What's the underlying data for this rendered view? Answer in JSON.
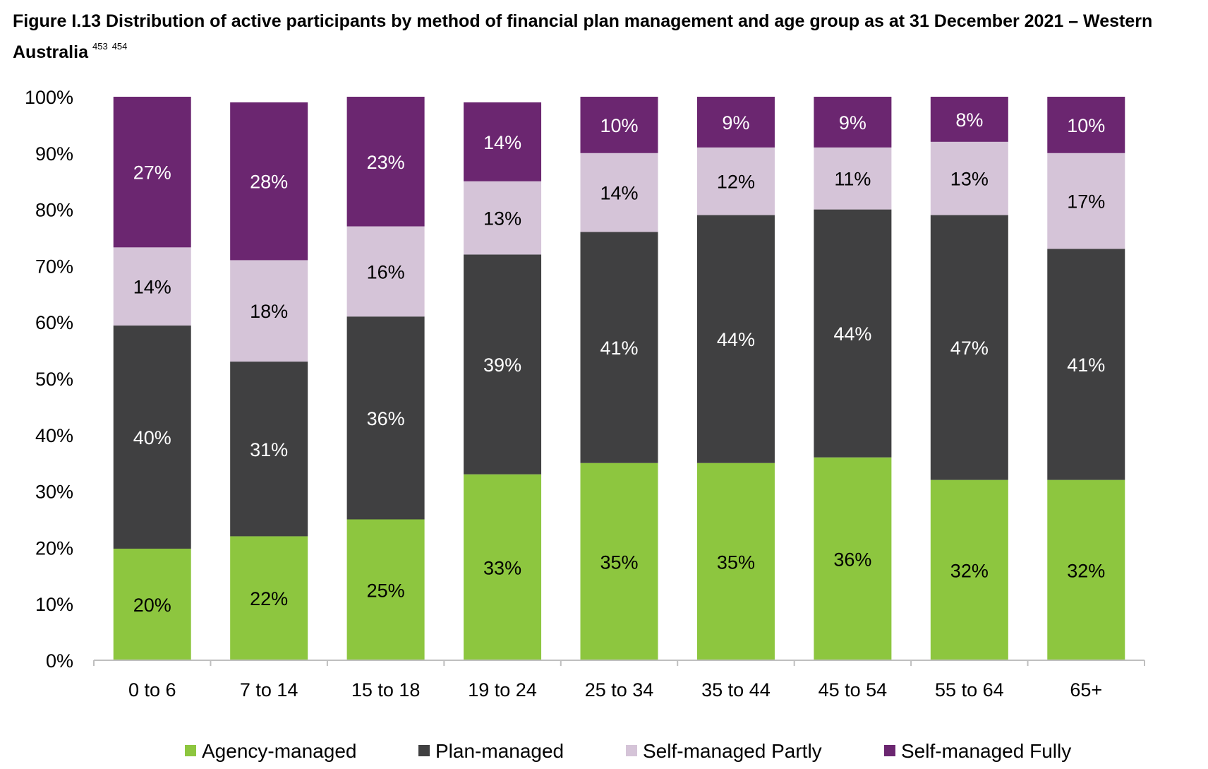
{
  "title": {
    "text": "Figure I.13 Distribution of active participants by method of financial plan management and age group as at 31 December 2021 – Western Australia",
    "footnotes": [
      "453",
      "454"
    ]
  },
  "colors": {
    "agency": "#8DC63F",
    "plan": "#404041",
    "partly": "#D5C4D8",
    "fully": "#6B2670",
    "axis": "#bfbfbf"
  },
  "chart_data": {
    "type": "bar",
    "stacked": true,
    "title": "",
    "xlabel": "",
    "ylabel": "",
    "ylim": [
      0,
      100
    ],
    "y_ticks": [
      "0%",
      "10%",
      "20%",
      "30%",
      "40%",
      "50%",
      "60%",
      "70%",
      "80%",
      "90%",
      "100%"
    ],
    "grid": false,
    "legend_position": "bottom",
    "categories": [
      "0 to 6",
      "7 to 14",
      "15 to 18",
      "19 to 24",
      "25 to 34",
      "35 to 44",
      "45 to 54",
      "55 to 64",
      "65+"
    ],
    "series": [
      {
        "name": "Agency-managed",
        "color_key": "agency",
        "label_color": "#000000",
        "values": [
          20,
          22,
          25,
          33,
          35,
          35,
          36,
          32,
          32
        ],
        "labels": [
          "20%",
          "22%",
          "25%",
          "33%",
          "35%",
          "35%",
          "36%",
          "32%",
          "32%"
        ]
      },
      {
        "name": "Plan-managed",
        "color_key": "plan",
        "label_color": "#ffffff",
        "values": [
          40,
          31,
          36,
          39,
          41,
          44,
          44,
          47,
          41
        ],
        "labels": [
          "40%",
          "31%",
          "36%",
          "39%",
          "41%",
          "44%",
          "44%",
          "47%",
          "41%"
        ]
      },
      {
        "name": "Self-managed Partly",
        "color_key": "partly",
        "label_color": "#000000",
        "values": [
          14,
          18,
          16,
          13,
          14,
          12,
          11,
          13,
          17
        ],
        "labels": [
          "14%",
          "18%",
          "16%",
          "13%",
          "14%",
          "12%",
          "11%",
          "13%",
          "17%"
        ]
      },
      {
        "name": "Self-managed Fully",
        "color_key": "fully",
        "label_color": "#ffffff",
        "values": [
          27,
          28,
          23,
          14,
          10,
          9,
          9,
          8,
          10
        ],
        "labels": [
          "27%",
          "28%",
          "23%",
          "14%",
          "10%",
          "9%",
          "9%",
          "8%",
          "10%"
        ]
      }
    ]
  }
}
